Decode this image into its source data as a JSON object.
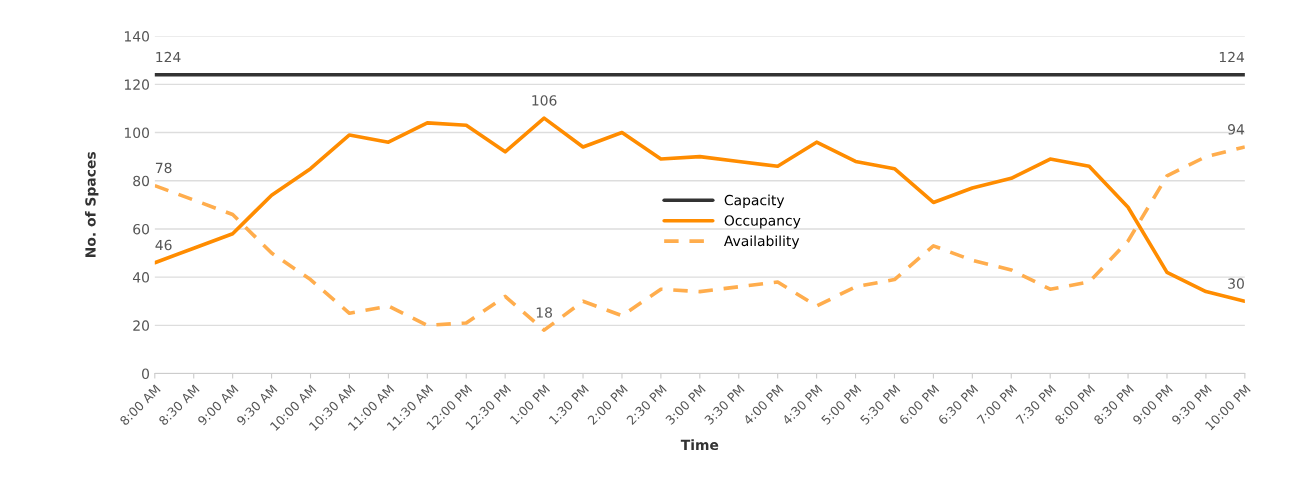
{
  "chart_data": {
    "type": "line",
    "xlabel": "Time",
    "ylabel": "No. of Spaces",
    "categories": [
      "8:00 AM",
      "8:30 AM",
      "9:00 AM",
      "9:30 AM",
      "10:00 AM",
      "10:30 AM",
      "11:00 AM",
      "11:30 AM",
      "12:00 PM",
      "12:30 PM",
      "1:00 PM",
      "1:30 PM",
      "2:00 PM",
      "2:30 PM",
      "3:00 PM",
      "3:30 PM",
      "4:00 PM",
      "4:30 PM",
      "5:00 PM",
      "5:30 PM",
      "6:00 PM",
      "6:30 PM",
      "7:00 PM",
      "7:30 PM",
      "8:00 PM",
      "8:30 PM",
      "9:00 PM",
      "9:30 PM",
      "10:00 PM"
    ],
    "series": [
      {
        "name": "Capacity",
        "color": "#333333",
        "line_style": "solid",
        "values": [
          124,
          124,
          124,
          124,
          124,
          124,
          124,
          124,
          124,
          124,
          124,
          124,
          124,
          124,
          124,
          124,
          124,
          124,
          124,
          124,
          124,
          124,
          124,
          124,
          124,
          124,
          124,
          124,
          124
        ],
        "value_labels": [
          "124",
          null,
          null,
          null,
          null,
          null,
          null,
          null,
          null,
          null,
          null,
          null,
          null,
          null,
          null,
          null,
          null,
          null,
          null,
          null,
          null,
          null,
          null,
          null,
          null,
          null,
          null,
          null,
          "124"
        ]
      },
      {
        "name": "Occupancy",
        "color": "#ff8c00",
        "line_style": "solid",
        "values": [
          46,
          52,
          58,
          74,
          85,
          99,
          96,
          104,
          103,
          92,
          106,
          94,
          100,
          89,
          90,
          88,
          86,
          96,
          88,
          85,
          71,
          77,
          81,
          89,
          86,
          69,
          42,
          34,
          30
        ],
        "value_labels": [
          "46",
          null,
          null,
          null,
          null,
          null,
          null,
          null,
          null,
          null,
          "106",
          null,
          null,
          null,
          null,
          null,
          null,
          null,
          null,
          null,
          null,
          null,
          null,
          null,
          null,
          null,
          null,
          null,
          "30"
        ]
      },
      {
        "name": "Availability",
        "color": "#ffad4d",
        "line_style": "dashed",
        "values": [
          78,
          72,
          66,
          50,
          39,
          25,
          28,
          20,
          21,
          32,
          18,
          30,
          24,
          35,
          34,
          36,
          38,
          28,
          36,
          39,
          53,
          47,
          43,
          35,
          38,
          55,
          82,
          90,
          94
        ],
        "value_labels": [
          "78",
          null,
          null,
          null,
          null,
          null,
          null,
          null,
          null,
          null,
          "18",
          null,
          null,
          null,
          null,
          null,
          null,
          null,
          null,
          null,
          null,
          null,
          null,
          null,
          null,
          null,
          null,
          null,
          "94"
        ]
      }
    ],
    "ylim": [
      0,
      140
    ],
    "yticks": [
      0,
      20,
      40,
      60,
      80,
      100,
      120,
      140
    ],
    "grid": "y",
    "legend": "center"
  }
}
